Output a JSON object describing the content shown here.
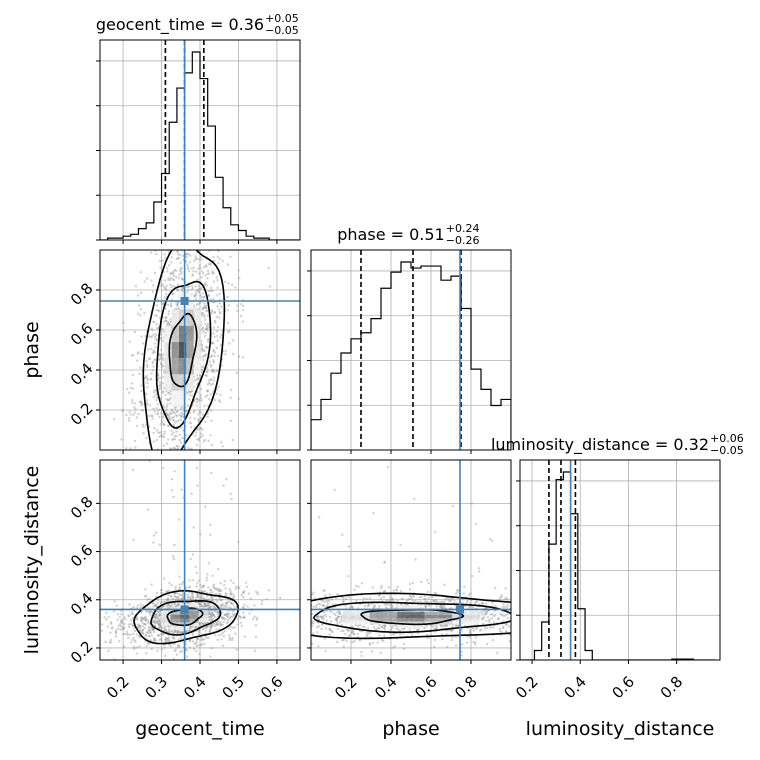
{
  "chart_data": {
    "type": "corner",
    "parameters": [
      "geocent_time",
      "phase",
      "luminosity_distance"
    ],
    "truths": {
      "geocent_time": 0.36,
      "phase": 0.745,
      "luminosity_distance": 0.36
    },
    "truth_color": "#4682b4",
    "ranges": {
      "geocent_time": [
        0.14,
        0.66
      ],
      "phase": [
        0.0,
        1.0
      ],
      "luminosity_distance": [
        0.15,
        0.98
      ]
    },
    "ticks": {
      "geocent_time": [
        0.2,
        0.3,
        0.4,
        0.5,
        0.6
      ],
      "phase": [
        0.2,
        0.4,
        0.6,
        0.8
      ],
      "luminosity_distance": [
        0.2,
        0.4,
        0.6,
        0.8
      ]
    },
    "tick_labels": {
      "geocent_time": [
        "0.2",
        "0.3",
        "0.4",
        "0.5",
        "0.6"
      ],
      "phase": [
        "0.2",
        "0.4",
        "0.6",
        "0.8"
      ],
      "luminosity_distance": [
        "0.2",
        "0.4",
        "0.6",
        "0.8"
      ]
    },
    "axis_labels": {
      "x": [
        "geocent_time",
        "phase",
        "luminosity_distance"
      ],
      "y": [
        "phase",
        "luminosity_distance"
      ]
    },
    "titles": [
      {
        "param": "geocent_time",
        "main": "geocent_time = 0.36",
        "sup": "+0.05",
        "sub": "−0.05"
      },
      {
        "param": "phase",
        "main": "phase = 0.51",
        "sup": "+0.24",
        "sub": "−0.26"
      },
      {
        "param": "luminosity_distance",
        "main": "luminosity_distance = 0.32",
        "sup": "+0.06",
        "sub": "−0.05"
      }
    ],
    "quantiles": {
      "geocent_time": [
        0.31,
        0.36,
        0.41
      ],
      "phase": [
        0.25,
        0.51,
        0.75
      ],
      "luminosity_distance": [
        0.27,
        0.32,
        0.38
      ]
    },
    "histograms": {
      "geocent_time": {
        "edges": [
          0.14,
          0.16,
          0.18,
          0.2,
          0.22,
          0.24,
          0.26,
          0.28,
          0.3,
          0.32,
          0.34,
          0.36,
          0.38,
          0.4,
          0.42,
          0.44,
          0.46,
          0.48,
          0.5,
          0.52,
          0.54,
          0.56,
          0.58,
          0.6,
          0.62,
          0.64,
          0.66
        ],
        "counts": [
          0,
          0.01,
          0.01,
          0.02,
          0.03,
          0.06,
          0.09,
          0.2,
          0.35,
          0.62,
          0.8,
          0.88,
          0.99,
          0.85,
          0.6,
          0.33,
          0.17,
          0.08,
          0.05,
          0.02,
          0.01,
          0.01,
          0,
          0,
          0,
          0
        ]
      },
      "phase": {
        "edges": [
          0.0,
          0.05,
          0.1,
          0.15,
          0.2,
          0.25,
          0.3,
          0.35,
          0.4,
          0.45,
          0.5,
          0.55,
          0.6,
          0.65,
          0.7,
          0.75,
          0.8,
          0.85,
          0.9,
          0.95,
          1.0
        ],
        "counts": [
          0.15,
          0.25,
          0.38,
          0.48,
          0.55,
          0.58,
          0.65,
          0.8,
          0.88,
          0.93,
          0.9,
          0.91,
          0.91,
          0.84,
          0.86,
          0.7,
          0.4,
          0.3,
          0.22,
          0.25
        ]
      },
      "luminosity_distance": {
        "edges": [
          0.15,
          0.18,
          0.21,
          0.24,
          0.27,
          0.3,
          0.33,
          0.36,
          0.39,
          0.42,
          0.45,
          0.48,
          0.51,
          0.54,
          0.57,
          0.6,
          0.63,
          0.66,
          0.69,
          0.72,
          0.75,
          0.78,
          0.81,
          0.84,
          0.87,
          0.9,
          0.93,
          0.96
        ],
        "counts": [
          0,
          0,
          0.05,
          0.2,
          0.61,
          0.95,
          0.99,
          0.77,
          0.27,
          0.05,
          0,
          0,
          0,
          0,
          0,
          0,
          0,
          0,
          0,
          0,
          0,
          0.005,
          0.005,
          0.005,
          0,
          0,
          0
        ]
      }
    },
    "density_2d": [
      {
        "x": "geocent_time",
        "y": "phase",
        "center": [
          0.355,
          0.5
        ],
        "sigma": [
          0.035,
          0.18
        ],
        "rho": 0.3,
        "outlier_fraction": 0.07,
        "contour_levels": [
          0.394,
          0.865,
          0.989
        ],
        "scatter_points": 1500
      },
      {
        "x": "geocent_time",
        "y": "luminosity_distance",
        "center": [
          0.36,
          0.33
        ],
        "sigma": [
          0.045,
          0.035
        ],
        "rho": 0.25,
        "outlier_fraction": 0.05,
        "contour_levels": [
          0.394,
          0.865,
          0.989
        ],
        "scatter_points": 1500
      },
      {
        "x": "phase",
        "y": "luminosity_distance",
        "center": [
          0.5,
          0.33
        ],
        "sigma": [
          0.25,
          0.03
        ],
        "rho": 0.0,
        "outlier_fraction": 0.04,
        "contour_levels": [
          0.394,
          0.865,
          0.989
        ],
        "scatter_points": 1500
      }
    ],
    "grid": true
  }
}
